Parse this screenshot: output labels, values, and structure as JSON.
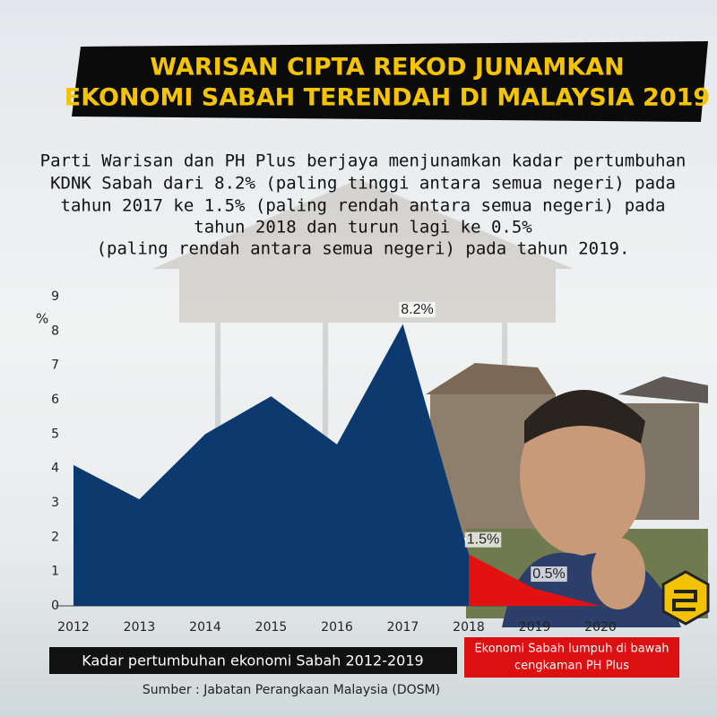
{
  "chart_data": {
    "type": "area",
    "title": [
      "WARISAN CIPTA REKOD JUNAMKAN",
      "EKONOMI SABAH TERENDAH DI MALAYSIA 2019"
    ],
    "subtitle": [
      "Parti Warisan dan PH Plus berjaya menjunamkan kadar pertumbuhan",
      "KDNK Sabah dari 8.2% (paling tinggi antara semua negeri) pada",
      "tahun 2017 ke 1.5% (paling rendah antara semua negeri) pada",
      "tahun 2018 dan turun lagi ke 0.5%",
      "(paling rendah antara semua negeri) pada tahun 2019."
    ],
    "ylabel": "%",
    "x": [
      2012,
      2013,
      2014,
      2015,
      2016,
      2017,
      2018,
      2019,
      2020
    ],
    "xlim": [
      2012,
      2020
    ],
    "xticks": [
      2012,
      2013,
      2014,
      2015,
      2016,
      2017,
      2018,
      2019,
      2020
    ],
    "ylim": [
      0,
      9
    ],
    "yticks": [
      0,
      1,
      2,
      3,
      4,
      5,
      6,
      7,
      8,
      9
    ],
    "series": [
      {
        "color": "#0d3a6e",
        "values": [
          4.1,
          3.1,
          5.0,
          6.1,
          4.7,
          8.2,
          1.5,
          null,
          null
        ],
        "value_labels": [
          null,
          null,
          null,
          null,
          null,
          "8.2%",
          null,
          null,
          null
        ]
      },
      {
        "color": "#e31212",
        "values": [
          null,
          null,
          null,
          null,
          null,
          null,
          1.5,
          0.5,
          0
        ],
        "value_labels": [
          null,
          null,
          null,
          null,
          null,
          null,
          "1.5%",
          "0.5%",
          null
        ]
      }
    ],
    "caption": "Kadar pertumbuhan ekonomi Sabah 2012-2019",
    "note": [
      "Ekonomi Sabah lumpuh di bawah",
      "cengkaman PH Plus"
    ],
    "source": "Sumber : Jabatan Perangkaan Malaysia (DOSM)"
  }
}
